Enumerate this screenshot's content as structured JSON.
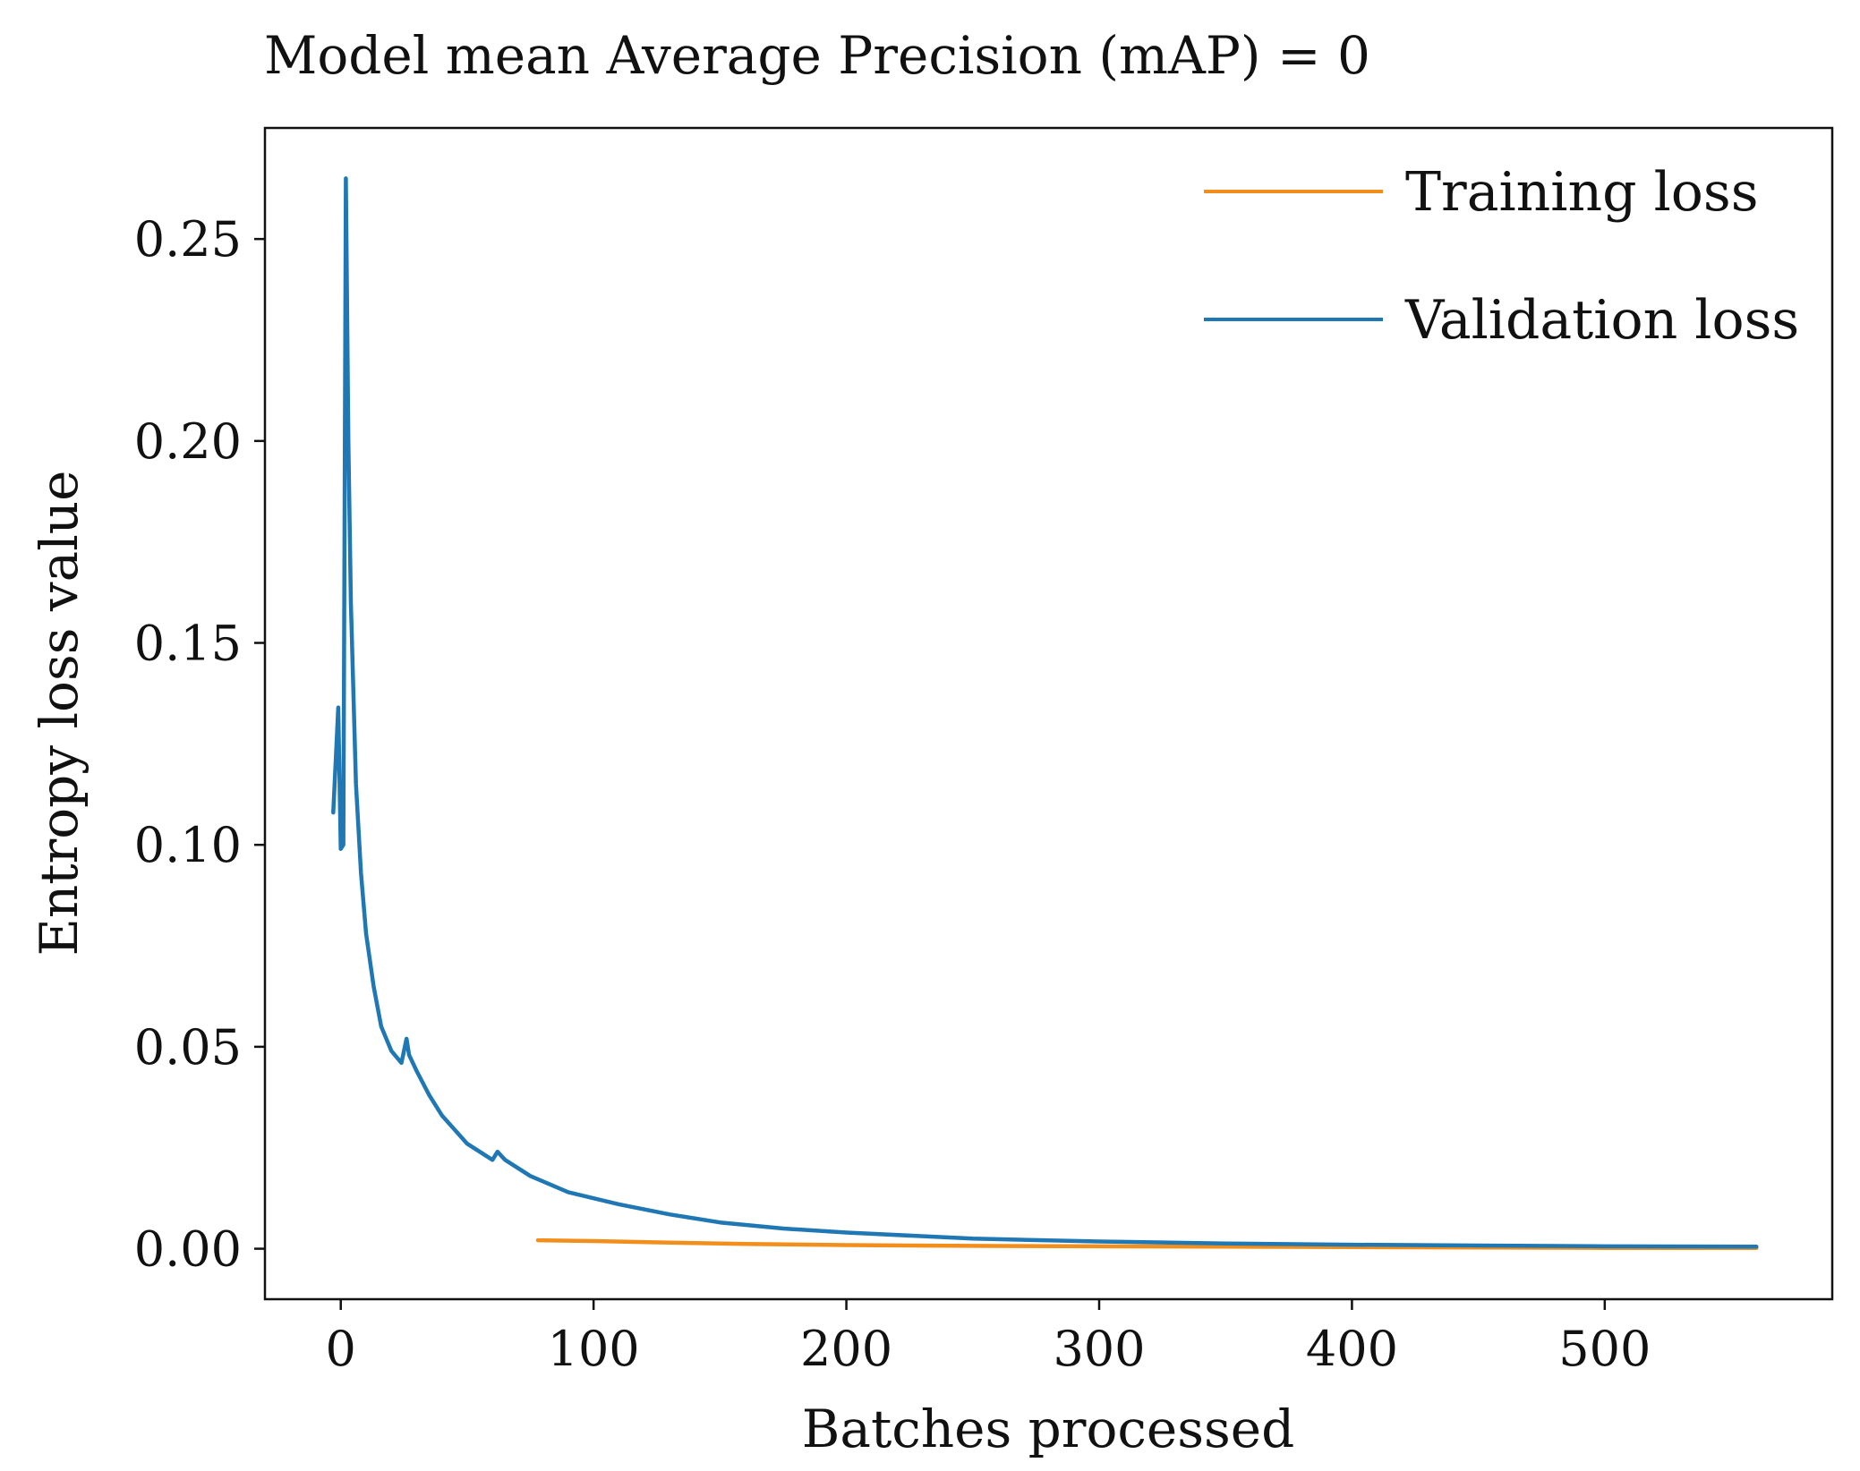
{
  "chart_data": {
    "type": "line",
    "title": "Model mean Average Precision (mAP) = 0",
    "xlabel": "Batches processed",
    "ylabel": "Entropy loss value",
    "xlim": [
      -30,
      590
    ],
    "ylim": [
      -0.0125,
      0.2775
    ],
    "xticks": [
      0,
      100,
      200,
      300,
      400,
      500
    ],
    "xtick_labels": [
      "0",
      "100",
      "200",
      "300",
      "400",
      "500"
    ],
    "yticks": [
      0.0,
      0.05,
      0.1,
      0.15,
      0.2,
      0.25
    ],
    "ytick_labels": [
      "0.00",
      "0.05",
      "0.10",
      "0.15",
      "0.20",
      "0.25"
    ],
    "grid": false,
    "legend": {
      "placement": "top-right",
      "entries": [
        "Training loss",
        "Validation loss"
      ]
    },
    "series": [
      {
        "name": "Training loss",
        "color": "#f28e1c",
        "x": [
          78,
          100,
          130,
          160,
          200,
          250,
          300,
          350,
          400,
          450,
          500,
          560
        ],
        "y": [
          0.0021,
          0.0019,
          0.0015,
          0.0012,
          0.0009,
          0.0007,
          0.0006,
          0.0005,
          0.0004,
          0.0003,
          0.0002,
          0.0002
        ]
      },
      {
        "name": "Validation loss",
        "color": "#1f77b4",
        "x": [
          -3,
          -1,
          0,
          1,
          2,
          3,
          4,
          6,
          8,
          10,
          13,
          16,
          20,
          24,
          26,
          27,
          30,
          35,
          40,
          50,
          60,
          62,
          65,
          75,
          90,
          110,
          130,
          150,
          175,
          200,
          250,
          300,
          350,
          400,
          450,
          500,
          560
        ],
        "y": [
          0.108,
          0.134,
          0.099,
          0.1,
          0.265,
          0.2,
          0.16,
          0.115,
          0.093,
          0.078,
          0.065,
          0.055,
          0.049,
          0.046,
          0.052,
          0.048,
          0.044,
          0.038,
          0.033,
          0.026,
          0.022,
          0.024,
          0.022,
          0.018,
          0.014,
          0.011,
          0.0085,
          0.0065,
          0.005,
          0.004,
          0.0025,
          0.0018,
          0.0013,
          0.001,
          0.0008,
          0.0006,
          0.0005
        ]
      }
    ]
  }
}
